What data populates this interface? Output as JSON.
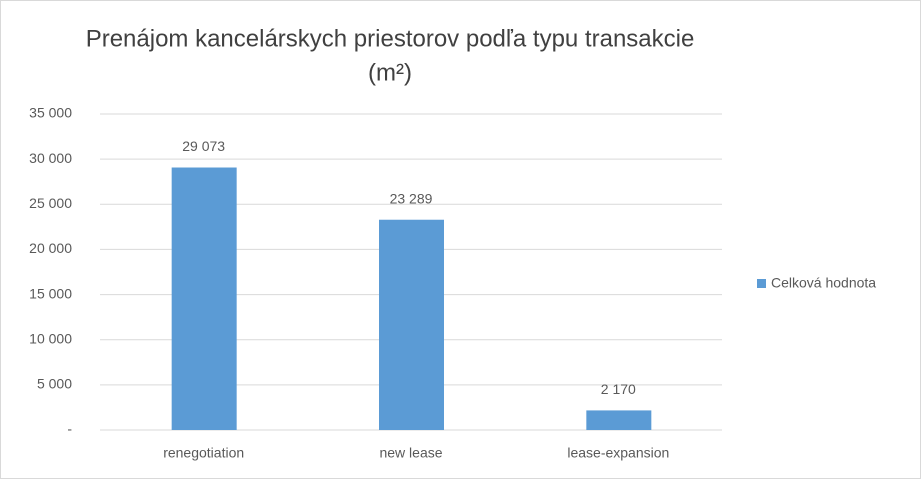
{
  "chart_data": {
    "type": "bar",
    "title": [
      "Prenájom kancelárskych priestorov podľa typu transakcie",
      "(m²)"
    ],
    "categories": [
      "renegotiation",
      "new lease",
      "lease-expansion"
    ],
    "series": [
      {
        "name": "Celková hodnota",
        "color": "#5b9bd5",
        "values": [
          29073,
          23289,
          2170
        ],
        "value_labels": [
          "29 073",
          "23 289",
          "2 170"
        ]
      }
    ],
    "ylim": [
      0,
      35000
    ],
    "yticks": [
      {
        "value": 0,
        "label": "-"
      },
      {
        "value": 5000,
        "label": "5 000"
      },
      {
        "value": 10000,
        "label": "10 000"
      },
      {
        "value": 15000,
        "label": "15 000"
      },
      {
        "value": 20000,
        "label": "20 000"
      },
      {
        "value": 25000,
        "label": "25 000"
      },
      {
        "value": 30000,
        "label": "30 000"
      },
      {
        "value": 35000,
        "label": "35 000"
      }
    ],
    "grid": true,
    "legend": "right"
  }
}
